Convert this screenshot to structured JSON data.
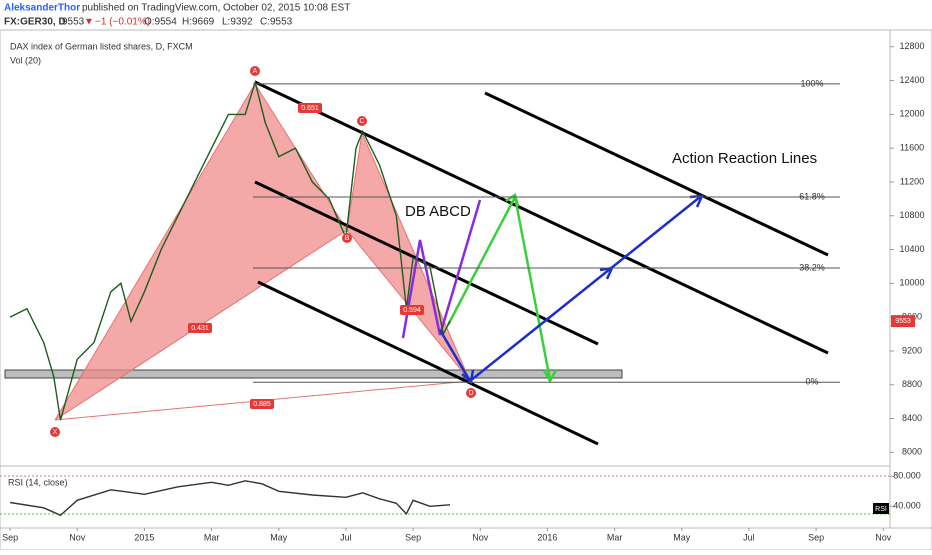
{
  "header": {
    "author": "AleksanderThor",
    "published": "published on TradingView.com, October 02, 2015 10:08 EST",
    "symbol": "FX:GER30, D",
    "price": "9553",
    "change": "−1 (−0.01%)",
    "open": "O:9554",
    "high": "H:9669",
    "low": "L:9392",
    "close": "C:9553"
  },
  "chart_data": [
    {
      "type": "line",
      "title": "DAX index of German listed shares, D, FXCM",
      "subtitle": "Vol (20)",
      "x": [
        0,
        0.5,
        1,
        1.3,
        1.5,
        2,
        2.5,
        3,
        3.3,
        3.6,
        4,
        4.5,
        5,
        5.5,
        6,
        6.5,
        7,
        7.3,
        7.6,
        8,
        8.5,
        9,
        9.5,
        10,
        10.3,
        10.5,
        11,
        11.5,
        11.8,
        12,
        12.5,
        12.9,
        13.1
      ],
      "values": [
        9600,
        9700,
        9300,
        8900,
        8380,
        9100,
        9300,
        9900,
        10000,
        9550,
        9900,
        10400,
        10800,
        11200,
        11600,
        12000,
        12000,
        12380,
        11900,
        11500,
        11600,
        11200,
        11000,
        10540,
        11600,
        11800,
        11400,
        10800,
        9700,
        10300,
        10200,
        9400,
        9553
      ],
      "color": "#1d5e1d",
      "xlim": [
        -0.3,
        26.2
      ],
      "xticks": [
        {
          "value": 0,
          "label": "Sep"
        },
        {
          "value": 2,
          "label": "Nov"
        },
        {
          "value": 4,
          "label": "2015"
        },
        {
          "value": 6,
          "label": "Mar"
        },
        {
          "value": 8,
          "label": "May"
        },
        {
          "value": 10,
          "label": "Jul"
        },
        {
          "value": 12,
          "label": "Sep"
        },
        {
          "value": 14,
          "label": "Nov"
        },
        {
          "value": 16,
          "label": "2016"
        },
        {
          "value": 18,
          "label": "Mar"
        },
        {
          "value": 20,
          "label": "May"
        },
        {
          "value": 22,
          "label": "Jul"
        },
        {
          "value": 24,
          "label": "Sep"
        },
        {
          "value": 26,
          "label": "Nov"
        }
      ],
      "ylim": [
        7850,
        12880
      ],
      "yticks": [
        8000,
        8400,
        8800,
        9200,
        9600,
        10000,
        10400,
        10800,
        11200,
        11600,
        12000,
        12400,
        12800
      ],
      "grid": false,
      "last_price_label": "9553",
      "fib_levels": [
        {
          "label": "100%",
          "value": 12360
        },
        {
          "label": "61.8%",
          "value": 11022
        },
        {
          "label": "38.2%",
          "value": 10181
        },
        {
          "label": "0%",
          "value": 8830
        }
      ],
      "points": [
        "X",
        "A",
        "B",
        "C",
        "D"
      ],
      "ratios": [
        "0.431",
        "0.885",
        "0.651",
        "0.594"
      ],
      "annotations": [
        "Action Reaction Lines",
        "DB ABCD"
      ]
    },
    {
      "type": "line",
      "title": "RSI (14, close)",
      "tag": "RSI",
      "x": [
        0,
        1,
        1.5,
        2,
        3,
        4,
        5,
        6,
        6.5,
        7,
        7.5,
        8,
        9,
        10,
        10.5,
        11,
        11.5,
        11.8,
        12,
        12.5,
        13.1
      ],
      "values": [
        45,
        38,
        28,
        48,
        62,
        56,
        66,
        72,
        68,
        74,
        70,
        60,
        55,
        52,
        58,
        50,
        44,
        30,
        48,
        40,
        42
      ],
      "color": "#333333",
      "xlim": [
        -0.3,
        26.2
      ],
      "ylim": [
        15,
        91
      ],
      "yticks": [
        {
          "value": 80,
          "label": "80.000"
        },
        {
          "value": 40,
          "label": "40.000"
        }
      ]
    }
  ]
}
